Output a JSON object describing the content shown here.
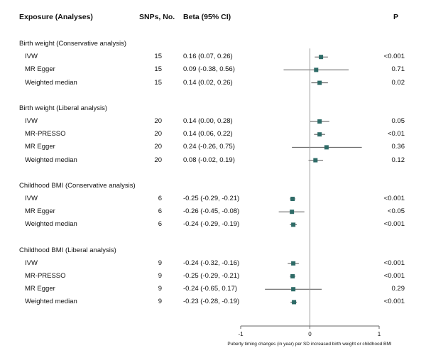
{
  "headers": {
    "exposure": "Exposure (Analyses)",
    "snps": "SNPs, No.",
    "beta": "Beta (95% CI)",
    "p": "P"
  },
  "colors": {
    "marker": "#2e6b67",
    "ci_line": "#555555",
    "axis": "#666666"
  },
  "chart_data": {
    "type": "forest",
    "xlabel": "Puberty timing changes (in year) per SD increased birth weight or childhood BMI",
    "xlim": [
      -1,
      1
    ],
    "xticks": [
      "-1",
      "0",
      "1"
    ],
    "groups": [
      {
        "label": "Birth weight (Conservative analysis)",
        "rows": [
          {
            "method": "IVW",
            "snps": "15",
            "ci_text": "0.16 (0.07, 0.26)",
            "p": "<0.001",
            "beta": 0.16,
            "lo": 0.07,
            "hi": 0.26
          },
          {
            "method": "MR Egger",
            "snps": "15",
            "ci_text": "0.09 (-0.38, 0.56)",
            "p": "0.71",
            "beta": 0.09,
            "lo": -0.38,
            "hi": 0.56
          },
          {
            "method": "Weighted median",
            "snps": "15",
            "ci_text": "0.14 (0.02, 0.26)",
            "p": "0.02",
            "beta": 0.14,
            "lo": 0.02,
            "hi": 0.26
          }
        ]
      },
      {
        "label": "Birth weight (Liberal analysis)",
        "rows": [
          {
            "method": "IVW",
            "snps": "20",
            "ci_text": "0.14 (0.00, 0.28)",
            "p": "0.05",
            "beta": 0.14,
            "lo": 0.0,
            "hi": 0.28
          },
          {
            "method": "MR-PRESSO",
            "snps": "20",
            "ci_text": "0.14 (0.06, 0.22)",
            "p": "<0.01",
            "beta": 0.14,
            "lo": 0.06,
            "hi": 0.22
          },
          {
            "method": "MR Egger",
            "snps": "20",
            "ci_text": "0.24 (-0.26, 0.75)",
            "p": "0.36",
            "beta": 0.24,
            "lo": -0.26,
            "hi": 0.75
          },
          {
            "method": "Weighted median",
            "snps": "20",
            "ci_text": "0.08 (-0.02, 0.19)",
            "p": "0.12",
            "beta": 0.08,
            "lo": -0.02,
            "hi": 0.19
          }
        ]
      },
      {
        "label": "Childhood BMI (Conservative analysis)",
        "rows": [
          {
            "method": "IVW",
            "snps": "6",
            "ci_text": "-0.25 (-0.29, -0.21)",
            "p": "<0.001",
            "beta": -0.25,
            "lo": -0.29,
            "hi": -0.21
          },
          {
            "method": "MR Egger",
            "snps": "6",
            "ci_text": "-0.26 (-0.45, -0.08)",
            "p": "<0.05",
            "beta": -0.26,
            "lo": -0.45,
            "hi": -0.08
          },
          {
            "method": "Weighted median",
            "snps": "6",
            "ci_text": "-0.24 (-0.29, -0.19)",
            "p": "<0.001",
            "beta": -0.24,
            "lo": -0.29,
            "hi": -0.19
          }
        ]
      },
      {
        "label": "Childhood BMI (Liberal analysis)",
        "rows": [
          {
            "method": "IVW",
            "snps": "9",
            "ci_text": "-0.24 (-0.32, -0.16)",
            "p": "<0.001",
            "beta": -0.24,
            "lo": -0.32,
            "hi": -0.16
          },
          {
            "method": "MR-PRESSO",
            "snps": "9",
            "ci_text": "-0.25 (-0.29, -0.21)",
            "p": "<0.001",
            "beta": -0.25,
            "lo": -0.29,
            "hi": -0.21
          },
          {
            "method": "MR Egger",
            "snps": "9",
            "ci_text": "-0.24 (-0.65, 0.17)",
            "p": "0.29",
            "beta": -0.24,
            "lo": -0.65,
            "hi": 0.17
          },
          {
            "method": "Weighted median",
            "snps": "9",
            "ci_text": "-0.23 (-0.28, -0.19)",
            "p": "<0.001",
            "beta": -0.23,
            "lo": -0.28,
            "hi": -0.19
          }
        ]
      }
    ]
  }
}
